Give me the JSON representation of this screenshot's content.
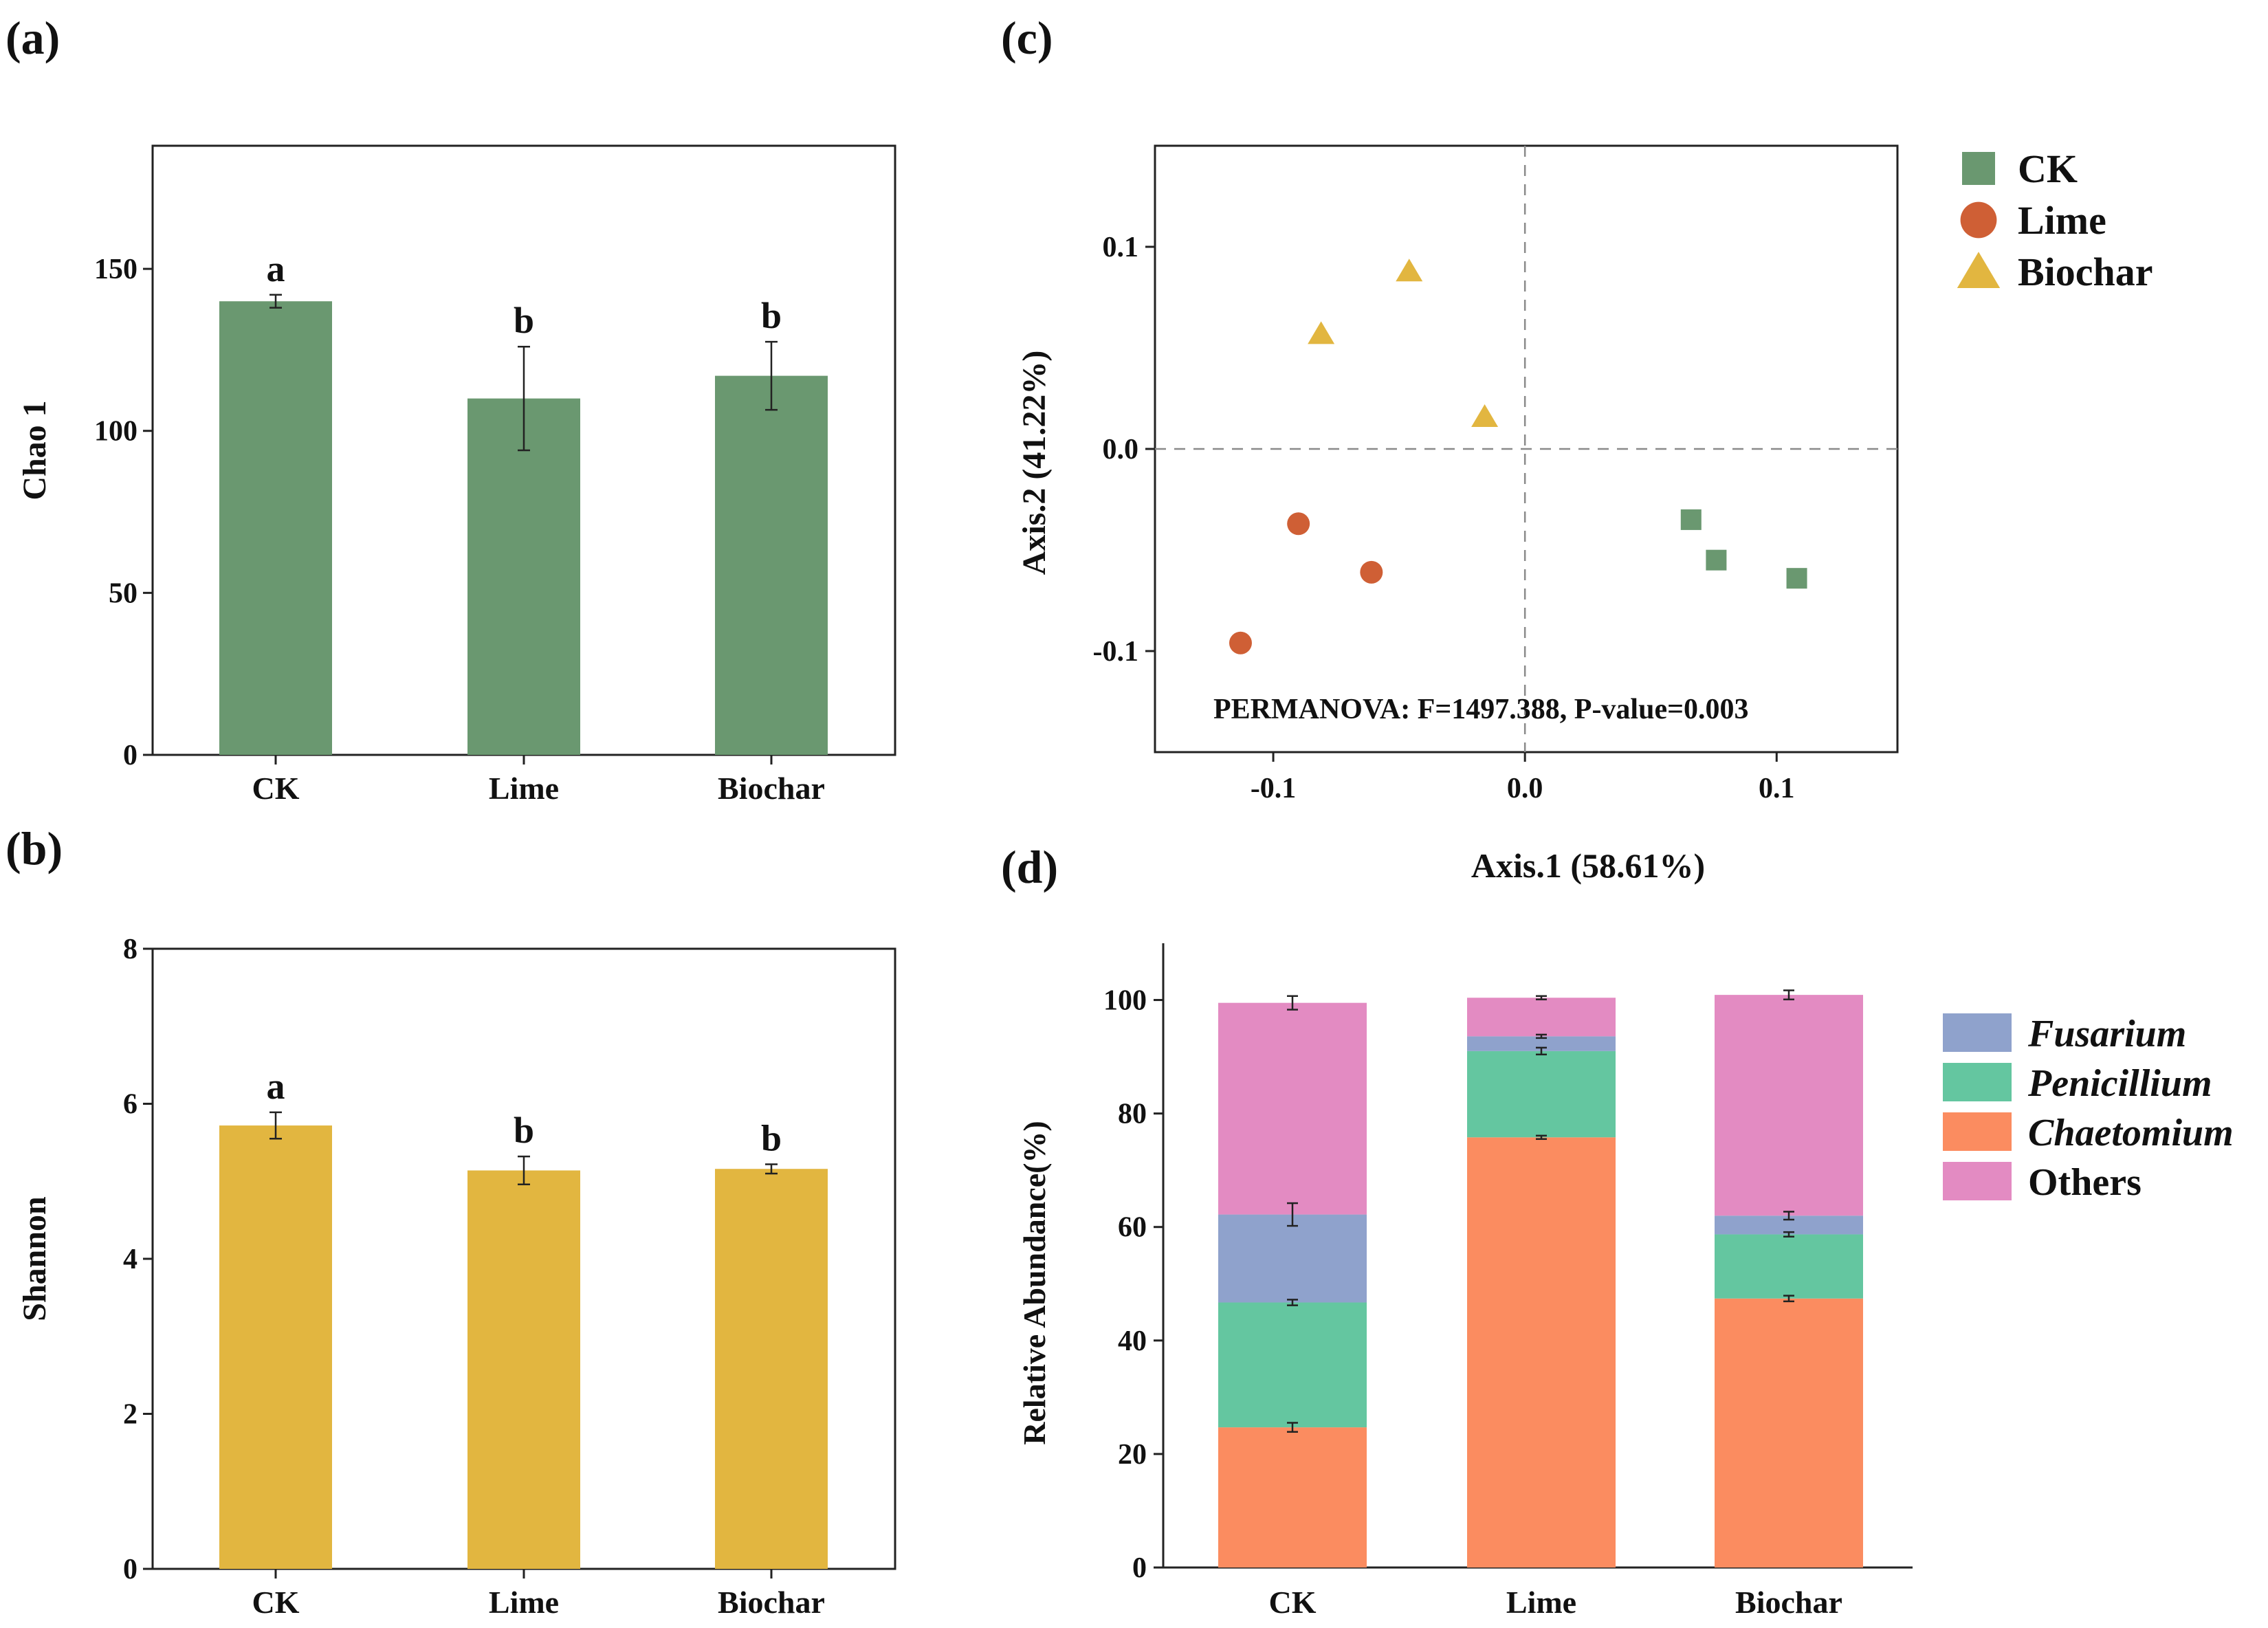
{
  "panel_labels": {
    "a": "(a)",
    "b": "(b)",
    "c": "(c)",
    "d": "(d)"
  },
  "colors": {
    "ck": "#6a9870",
    "lime": "#cf5f35",
    "biochar": "#e2b640",
    "shannon_bar": "#e2b640",
    "chao_bar": "#6a9870",
    "fusarium": "#8fa2cc",
    "penicillium": "#64c6a0",
    "chaetomium": "#fb8c60",
    "others": "#e38bc2"
  },
  "chart_data": [
    {
      "id": "a",
      "type": "bar",
      "categories": [
        "CK",
        "Lime",
        "Biochar"
      ],
      "values": [
        140,
        110,
        117
      ],
      "errors": [
        2,
        16,
        10.5
      ],
      "significance": [
        "a",
        "b",
        "b"
      ],
      "ylabel": "Chao 1",
      "ylim": [
        0,
        188
      ],
      "yticks": [
        0,
        50,
        100,
        150
      ]
    },
    {
      "id": "b",
      "type": "bar",
      "categories": [
        "CK",
        "Lime",
        "Biochar"
      ],
      "values": [
        5.72,
        5.14,
        5.16
      ],
      "errors": [
        0.17,
        0.18,
        0.06
      ],
      "significance": [
        "a",
        "b",
        "b"
      ],
      "ylabel": "Shannon",
      "ylim": [
        0,
        8
      ],
      "yticks": [
        0,
        2,
        4,
        6,
        8
      ]
    },
    {
      "id": "c",
      "type": "scatter",
      "xlabel": "Axis.1 (58.61%)",
      "ylabel": "Axis.2 (41.22%)",
      "xlim": [
        -0.147,
        0.148
      ],
      "ylim": [
        -0.15,
        0.15
      ],
      "xticks": [
        -0.1,
        0.0,
        0.1
      ],
      "yticks": [
        -0.1,
        0.0,
        0.1
      ],
      "reference_lines": {
        "x": 0.0,
        "y": 0.0
      },
      "annotation": "PERMANOVA:   F=1497.388,    P-value=0.003",
      "legend": [
        "CK",
        "Lime",
        "Biochar"
      ],
      "series": [
        {
          "name": "CK",
          "marker": "square",
          "points": [
            [
              0.066,
              -0.035
            ],
            [
              0.076,
              -0.055
            ],
            [
              0.108,
              -0.064
            ]
          ]
        },
        {
          "name": "Lime",
          "marker": "circle",
          "points": [
            [
              -0.09,
              -0.037
            ],
            [
              -0.061,
              -0.061
            ],
            [
              -0.113,
              -0.096
            ]
          ]
        },
        {
          "name": "Biochar",
          "marker": "triangle",
          "points": [
            [
              -0.081,
              0.057
            ],
            [
              -0.046,
              0.088
            ],
            [
              -0.016,
              0.016
            ]
          ]
        }
      ]
    },
    {
      "id": "d",
      "type": "bar",
      "stacked": true,
      "categories": [
        "CK",
        "Lime",
        "Biochar"
      ],
      "ylabel": "Relative Abundance(%)",
      "ylim": [
        0,
        110
      ],
      "yticks": [
        0,
        20,
        40,
        60,
        80,
        100
      ],
      "legend": [
        "Fusarium",
        "Penicillium",
        "Chaetomium",
        "Others"
      ],
      "series": [
        {
          "name": "Chaetomium",
          "values": [
            24.7,
            75.8,
            47.4
          ],
          "errors": [
            0.8,
            0.3,
            0.5
          ]
        },
        {
          "name": "Penicillium",
          "values": [
            22.0,
            15.2,
            11.3
          ],
          "errors": [
            0.5,
            0.6,
            0.4
          ]
        },
        {
          "name": "Fusarium",
          "values": [
            15.5,
            2.6,
            3.3
          ],
          "errors": [
            2.0,
            0.3,
            0.7
          ]
        },
        {
          "name": "Others",
          "values": [
            37.3,
            6.8,
            38.9
          ],
          "errors": [
            1.2,
            0.3,
            0.8
          ]
        }
      ]
    }
  ]
}
